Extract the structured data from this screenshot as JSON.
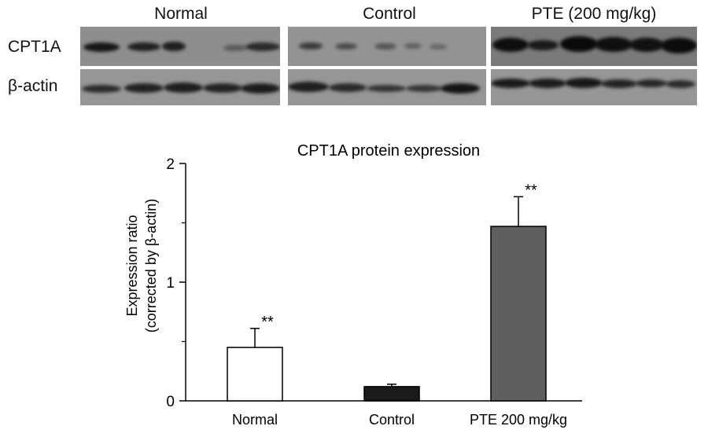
{
  "blot": {
    "group_labels": [
      "Normal",
      "Control",
      "PTE (200 mg/kg)"
    ],
    "row_labels": [
      "CPT1A",
      "β-actin"
    ]
  },
  "chart_data": {
    "type": "bar",
    "title": "CPT1A protein expression",
    "ylabel_line1": "Expression ratio",
    "ylabel_line2": "(corrected by β-actin)",
    "xlabel": "",
    "categories": [
      "Normal",
      "Control",
      "PTE 200 mg/kg"
    ],
    "values": [
      0.45,
      0.12,
      1.47
    ],
    "errors": [
      0.16,
      0.02,
      0.25
    ],
    "annotations": [
      "**",
      "",
      "**"
    ],
    "bar_colors": [
      "#ffffff",
      "#1a1a1a",
      "#5f5f5f"
    ],
    "ylim": [
      0,
      2
    ],
    "yticks": [
      0,
      1,
      2
    ],
    "grid": false
  }
}
